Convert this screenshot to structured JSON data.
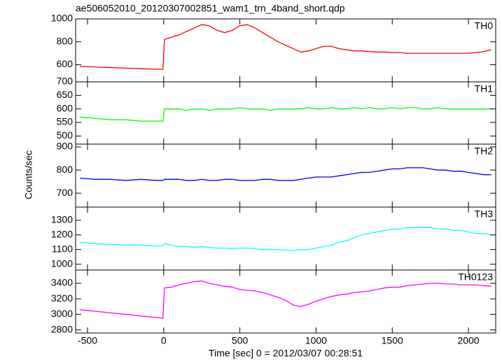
{
  "title": "ae506052010_20120307002851_wam1_trn_4band_short.qdp",
  "xlabel": "Time [sec] 0 = 2012/03/07 00:28:51",
  "ylabel": "Counts/sec",
  "chart_data": [
    {
      "type": "line",
      "xlim": [
        -578,
        2179
      ],
      "xticks": [
        -500,
        0,
        500,
        1000,
        1500,
        2000
      ],
      "ylim": [
        450,
        1000
      ],
      "yticks": [
        600,
        800,
        1000
      ],
      "x": [
        -550,
        -450,
        -350,
        -250,
        -150,
        -50,
        -5,
        5,
        50,
        100,
        150,
        200,
        250,
        300,
        350,
        400,
        450,
        500,
        550,
        600,
        650,
        700,
        750,
        800,
        850,
        900,
        950,
        1000,
        1050,
        1100,
        1150,
        1200,
        1250,
        1300,
        1350,
        1400,
        1450,
        1500,
        1550,
        1600,
        1650,
        1700,
        1750,
        1800,
        1850,
        1900,
        1950,
        2000,
        2050,
        2100,
        2150
      ],
      "series": [
        {
          "name": "TH0",
          "color": "#ff0000",
          "values": [
            585,
            580,
            575,
            570,
            565,
            560,
            560,
            820,
            840,
            860,
            890,
            920,
            950,
            940,
            900,
            880,
            900,
            940,
            950,
            920,
            880,
            840,
            800,
            770,
            740,
            710,
            720,
            740,
            760,
            760,
            740,
            730,
            720,
            720,
            715,
            710,
            710,
            705,
            705,
            700,
            700,
            700,
            700,
            700,
            700,
            700,
            700,
            700,
            705,
            715,
            730
          ]
        }
      ]
    },
    {
      "type": "line",
      "xlim": [
        -578,
        2179
      ],
      "xticks": [
        -500,
        0,
        500,
        1000,
        1500,
        2000
      ],
      "ylim": [
        470,
        700
      ],
      "yticks": [
        500,
        550,
        600,
        650,
        700
      ],
      "x": [
        -550,
        -450,
        -350,
        -250,
        -150,
        -50,
        -5,
        5,
        50,
        100,
        150,
        200,
        250,
        300,
        350,
        400,
        450,
        500,
        550,
        600,
        650,
        700,
        750,
        800,
        850,
        900,
        950,
        1000,
        1050,
        1100,
        1150,
        1200,
        1250,
        1300,
        1350,
        1400,
        1450,
        1500,
        1550,
        1600,
        1650,
        1700,
        1750,
        1800,
        1850,
        1900,
        1950,
        2000,
        2050,
        2100,
        2150
      ],
      "series": [
        {
          "name": "TH1",
          "color": "#00ff00",
          "values": [
            570,
            565,
            560,
            560,
            555,
            555,
            555,
            600,
            600,
            600,
            595,
            600,
            600,
            595,
            600,
            600,
            600,
            605,
            600,
            600,
            600,
            595,
            600,
            600,
            600,
            600,
            605,
            600,
            600,
            605,
            600,
            600,
            605,
            600,
            605,
            600,
            600,
            605,
            600,
            605,
            605,
            600,
            600,
            605,
            600,
            600,
            600,
            600,
            600,
            600,
            600
          ]
        }
      ]
    },
    {
      "type": "line",
      "xlim": [
        -578,
        2179
      ],
      "xticks": [
        -500,
        0,
        500,
        1000,
        1500,
        2000
      ],
      "ylim": [
        640,
        912
      ],
      "yticks": [
        700,
        800,
        900
      ],
      "x": [
        -550,
        -450,
        -350,
        -250,
        -150,
        -50,
        -5,
        5,
        50,
        100,
        150,
        200,
        250,
        300,
        350,
        400,
        450,
        500,
        550,
        600,
        650,
        700,
        750,
        800,
        850,
        900,
        950,
        1000,
        1050,
        1100,
        1150,
        1200,
        1250,
        1300,
        1350,
        1400,
        1450,
        1500,
        1550,
        1600,
        1650,
        1700,
        1750,
        1800,
        1850,
        1900,
        1950,
        2000,
        2050,
        2100,
        2150
      ],
      "series": [
        {
          "name": "TH2",
          "color": "#0000ff",
          "values": [
            765,
            760,
            760,
            755,
            760,
            755,
            755,
            760,
            760,
            760,
            755,
            755,
            760,
            755,
            755,
            760,
            760,
            755,
            755,
            755,
            760,
            760,
            755,
            755,
            755,
            760,
            765,
            770,
            770,
            770,
            775,
            780,
            785,
            790,
            790,
            795,
            800,
            805,
            805,
            810,
            810,
            810,
            805,
            800,
            800,
            795,
            795,
            790,
            785,
            780,
            780
          ]
        }
      ]
    },
    {
      "type": "line",
      "xlim": [
        -578,
        2179
      ],
      "xticks": [
        -500,
        0,
        500,
        1000,
        1500,
        2000
      ],
      "ylim": [
        960,
        1390
      ],
      "yticks": [
        1000,
        1100,
        1200,
        1300
      ],
      "x": [
        -550,
        -450,
        -350,
        -250,
        -150,
        -50,
        -5,
        5,
        50,
        100,
        150,
        200,
        250,
        300,
        350,
        400,
        450,
        500,
        550,
        600,
        650,
        700,
        750,
        800,
        850,
        900,
        950,
        1000,
        1050,
        1100,
        1150,
        1200,
        1250,
        1300,
        1350,
        1400,
        1450,
        1500,
        1550,
        1600,
        1650,
        1700,
        1750,
        1800,
        1850,
        1900,
        1950,
        2000,
        2050,
        2100,
        2150
      ],
      "series": [
        {
          "name": "TH3",
          "color": "#00ffff",
          "values": [
            1150,
            1140,
            1135,
            1130,
            1130,
            1125,
            1125,
            1140,
            1130,
            1120,
            1120,
            1115,
            1120,
            1115,
            1110,
            1110,
            1105,
            1110,
            1110,
            1105,
            1100,
            1100,
            1100,
            1095,
            1095,
            1100,
            1100,
            1110,
            1120,
            1130,
            1150,
            1160,
            1180,
            1200,
            1210,
            1220,
            1230,
            1240,
            1240,
            1250,
            1250,
            1250,
            1250,
            1240,
            1240,
            1230,
            1230,
            1220,
            1210,
            1210,
            1200
          ]
        }
      ]
    },
    {
      "type": "line",
      "xlim": [
        -578,
        2179
      ],
      "xticks": [
        -500,
        0,
        500,
        1000,
        1500,
        2000
      ],
      "ylim": [
        2760,
        3570
      ],
      "yticks": [
        2800,
        3000,
        3200,
        3400
      ],
      "x": [
        -550,
        -450,
        -350,
        -250,
        -150,
        -50,
        -5,
        5,
        50,
        100,
        150,
        200,
        250,
        300,
        350,
        400,
        450,
        500,
        550,
        600,
        650,
        700,
        750,
        800,
        850,
        900,
        950,
        1000,
        1050,
        1100,
        1150,
        1200,
        1250,
        1300,
        1350,
        1400,
        1450,
        1500,
        1550,
        1600,
        1650,
        1700,
        1750,
        1800,
        1850,
        1900,
        1950,
        2000,
        2050,
        2100,
        2150
      ],
      "series": [
        {
          "name": "TH0123",
          "color": "#ff00ff",
          "values": [
            3060,
            3040,
            3020,
            3000,
            2980,
            2960,
            2950,
            3340,
            3350,
            3380,
            3400,
            3420,
            3430,
            3400,
            3380,
            3360,
            3350,
            3320,
            3310,
            3300,
            3280,
            3250,
            3220,
            3180,
            3120,
            3100,
            3130,
            3170,
            3200,
            3230,
            3250,
            3260,
            3280,
            3290,
            3300,
            3320,
            3340,
            3350,
            3350,
            3370,
            3380,
            3390,
            3400,
            3400,
            3390,
            3390,
            3380,
            3380,
            3380,
            3370,
            3360
          ]
        }
      ]
    }
  ]
}
